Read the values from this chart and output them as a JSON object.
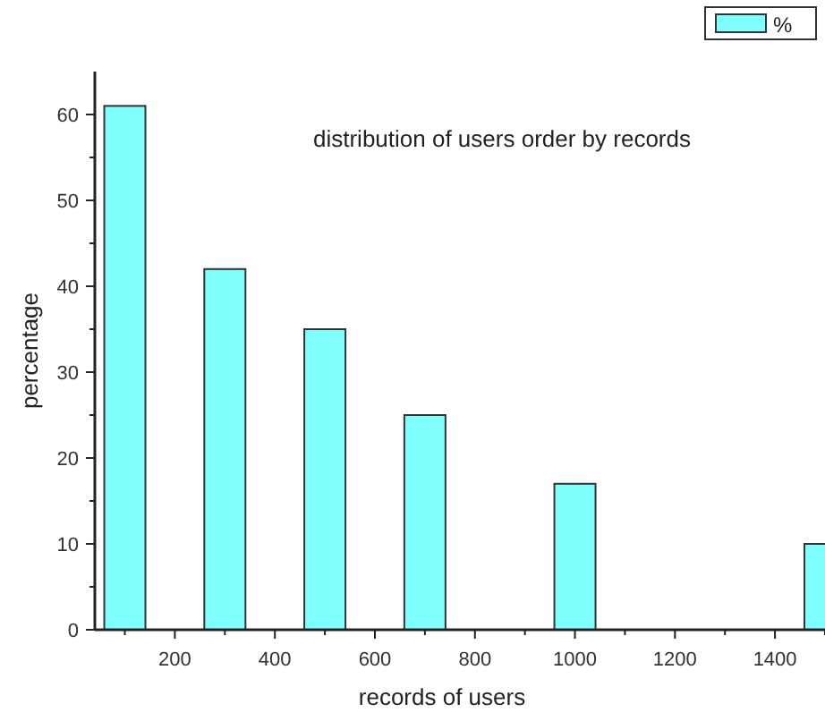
{
  "chart_data": {
    "type": "bar",
    "title": "distribution of users order by records",
    "xlabel": "records of users",
    "ylabel": "percentage",
    "x": [
      100,
      300,
      500,
      700,
      1000,
      1500
    ],
    "series": [
      {
        "name": "%",
        "color": "#80ffff",
        "values": [
          61,
          42,
          35,
          25,
          17,
          10
        ]
      }
    ],
    "xlim": [
      40,
      1500
    ],
    "xticks": [
      {
        "value": 100,
        "label": null
      },
      200,
      {
        "value": 300,
        "label": null
      },
      400,
      {
        "value": 500,
        "label": null
      },
      600,
      {
        "value": 700,
        "label": null
      },
      800,
      {
        "value": 900,
        "label": null
      },
      1000,
      {
        "value": 1100,
        "label": null
      },
      1200,
      {
        "value": 1300,
        "label": null
      },
      1400,
      {
        "value": 1500,
        "label": null
      }
    ],
    "ylim": [
      0,
      65
    ],
    "yticks": [
      0,
      {
        "value": 5,
        "label": null
      },
      10,
      {
        "value": 15,
        "label": null
      },
      20,
      {
        "value": 25,
        "label": null
      },
      30,
      {
        "value": 35,
        "label": null
      },
      40,
      {
        "value": 45,
        "label": null
      },
      50,
      {
        "value": 55,
        "label": null
      },
      60
    ],
    "legend": "top right",
    "grid": false
  }
}
